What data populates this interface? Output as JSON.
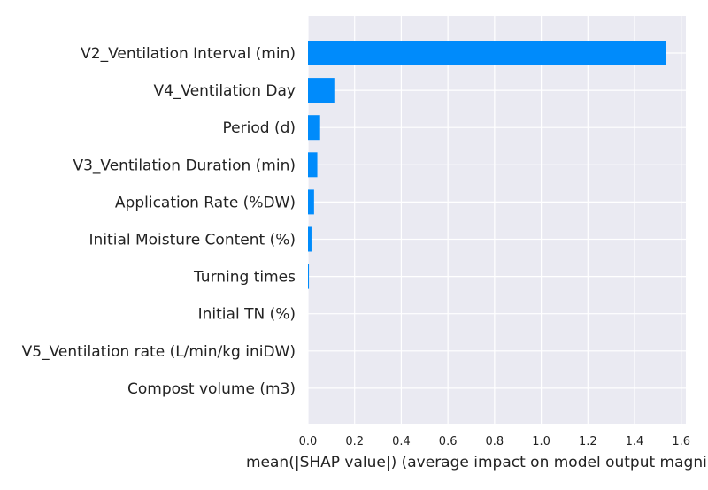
{
  "chart_data": {
    "type": "bar",
    "orientation": "horizontal",
    "title": "",
    "xlabel": "mean(|SHAP value|) (average impact on model output magni",
    "ylabel": "",
    "xlim": [
      0,
      1.62
    ],
    "x_ticks": [
      "0.0",
      "0.2",
      "0.4",
      "0.6",
      "0.8",
      "1.0",
      "1.2",
      "1.4",
      "1.6"
    ],
    "grid": true,
    "categories": [
      "V2_Ventilation Interval (min)",
      "V4_Ventilation Day",
      "Period (d)",
      "V3_Ventilation Duration (min)",
      "Application Rate (%DW)",
      "Initial Moisture Content (%)",
      "Turning times",
      "Initial TN (%)",
      "V5_Ventilation rate (L/min/kg iniDW)",
      "Compost volume (m3)"
    ],
    "values": [
      1.535,
      0.113,
      0.052,
      0.04,
      0.026,
      0.015,
      0.004,
      0.0,
      0.0,
      0.0
    ],
    "colors": {
      "bar": "#008bfb",
      "plot_bg": "#eaeaf2",
      "grid": "#ffffff",
      "text": "#222222"
    }
  }
}
